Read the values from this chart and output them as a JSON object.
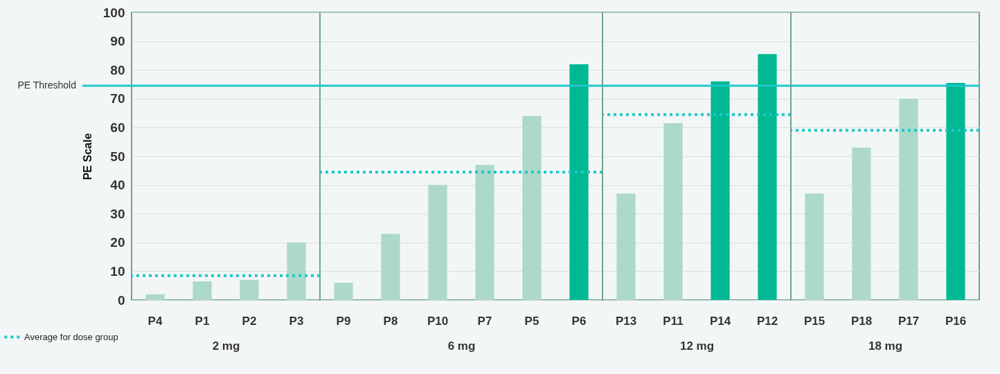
{
  "chart_data": [
    {
      "type": "bar",
      "ylabel": "PE Scale",
      "xlabel": "2 mg",
      "categories": [
        "P4",
        "P1",
        "P2",
        "P3"
      ],
      "values": [
        2,
        6.5,
        7,
        20
      ],
      "colors": [
        "#acd9c9",
        "#acd9c9",
        "#acd9c9",
        "#acd9c9"
      ],
      "ylim": [
        0,
        100
      ],
      "yticks": [
        0,
        10,
        20,
        30,
        40,
        50,
        60,
        70,
        80,
        90,
        100
      ],
      "grid": "y",
      "ref_lines": [
        {
          "axis": "y",
          "value": 74.5,
          "label": "PE Threshold",
          "color": "#1ec8c8"
        },
        {
          "axis": "y",
          "value": 8.5,
          "label": "Average for dose group",
          "color": "#1ec8c8",
          "line_style": "dotted"
        }
      ]
    },
    {
      "type": "bar",
      "xlabel": "6 mg",
      "categories": [
        "P9",
        "P8",
        "P10",
        "P7",
        "P5",
        "P6"
      ],
      "values": [
        6,
        23,
        40,
        47,
        64,
        82
      ],
      "colors": [
        "#acd9c9",
        "#acd9c9",
        "#acd9c9",
        "#acd9c9",
        "#acd9c9",
        "#00b894"
      ],
      "ylim": [
        0,
        100
      ],
      "yticks": [
        0,
        10,
        20,
        30,
        40,
        50,
        60,
        70,
        80,
        90,
        100
      ],
      "grid": "y",
      "tick_labels": "x",
      "ref_lines": [
        {
          "axis": "y",
          "value": 74.5,
          "color": "#1ec8c8"
        },
        {
          "axis": "y",
          "value": 44.5,
          "color": "#1ec8c8",
          "line_style": "dotted"
        }
      ]
    },
    {
      "type": "bar",
      "xlabel": "12 mg",
      "categories": [
        "P13",
        "P11",
        "P14",
        "P12"
      ],
      "values": [
        37,
        61.5,
        76,
        85.5
      ],
      "colors": [
        "#acd9c9",
        "#acd9c9",
        "#00b894",
        "#00b894"
      ],
      "ylim": [
        0,
        100
      ],
      "yticks": [
        0,
        10,
        20,
        30,
        40,
        50,
        60,
        70,
        80,
        90,
        100
      ],
      "grid": "y",
      "tick_labels": "x",
      "ref_lines": [
        {
          "axis": "y",
          "value": 74.5,
          "color": "#1ec8c8"
        },
        {
          "axis": "y",
          "value": 64.5,
          "color": "#1ec8c8",
          "line_style": "dotted"
        }
      ]
    },
    {
      "type": "bar",
      "xlabel": "18 mg",
      "categories": [
        "P15",
        "P18",
        "P17",
        "P16"
      ],
      "values": [
        37,
        53,
        70,
        75.5
      ],
      "colors": [
        "#acd9c9",
        "#acd9c9",
        "#acd9c9",
        "#00b894"
      ],
      "ylim": [
        0,
        100
      ],
      "yticks": [
        0,
        10,
        20,
        30,
        40,
        50,
        60,
        70,
        80,
        90,
        100
      ],
      "grid": "y",
      "tick_labels": "x",
      "ref_lines": [
        {
          "axis": "y",
          "value": 74.5,
          "color": "#1ec8c8"
        },
        {
          "axis": "y",
          "value": 59,
          "color": "#1ec8c8",
          "line_style": "dotted"
        }
      ]
    }
  ]
}
